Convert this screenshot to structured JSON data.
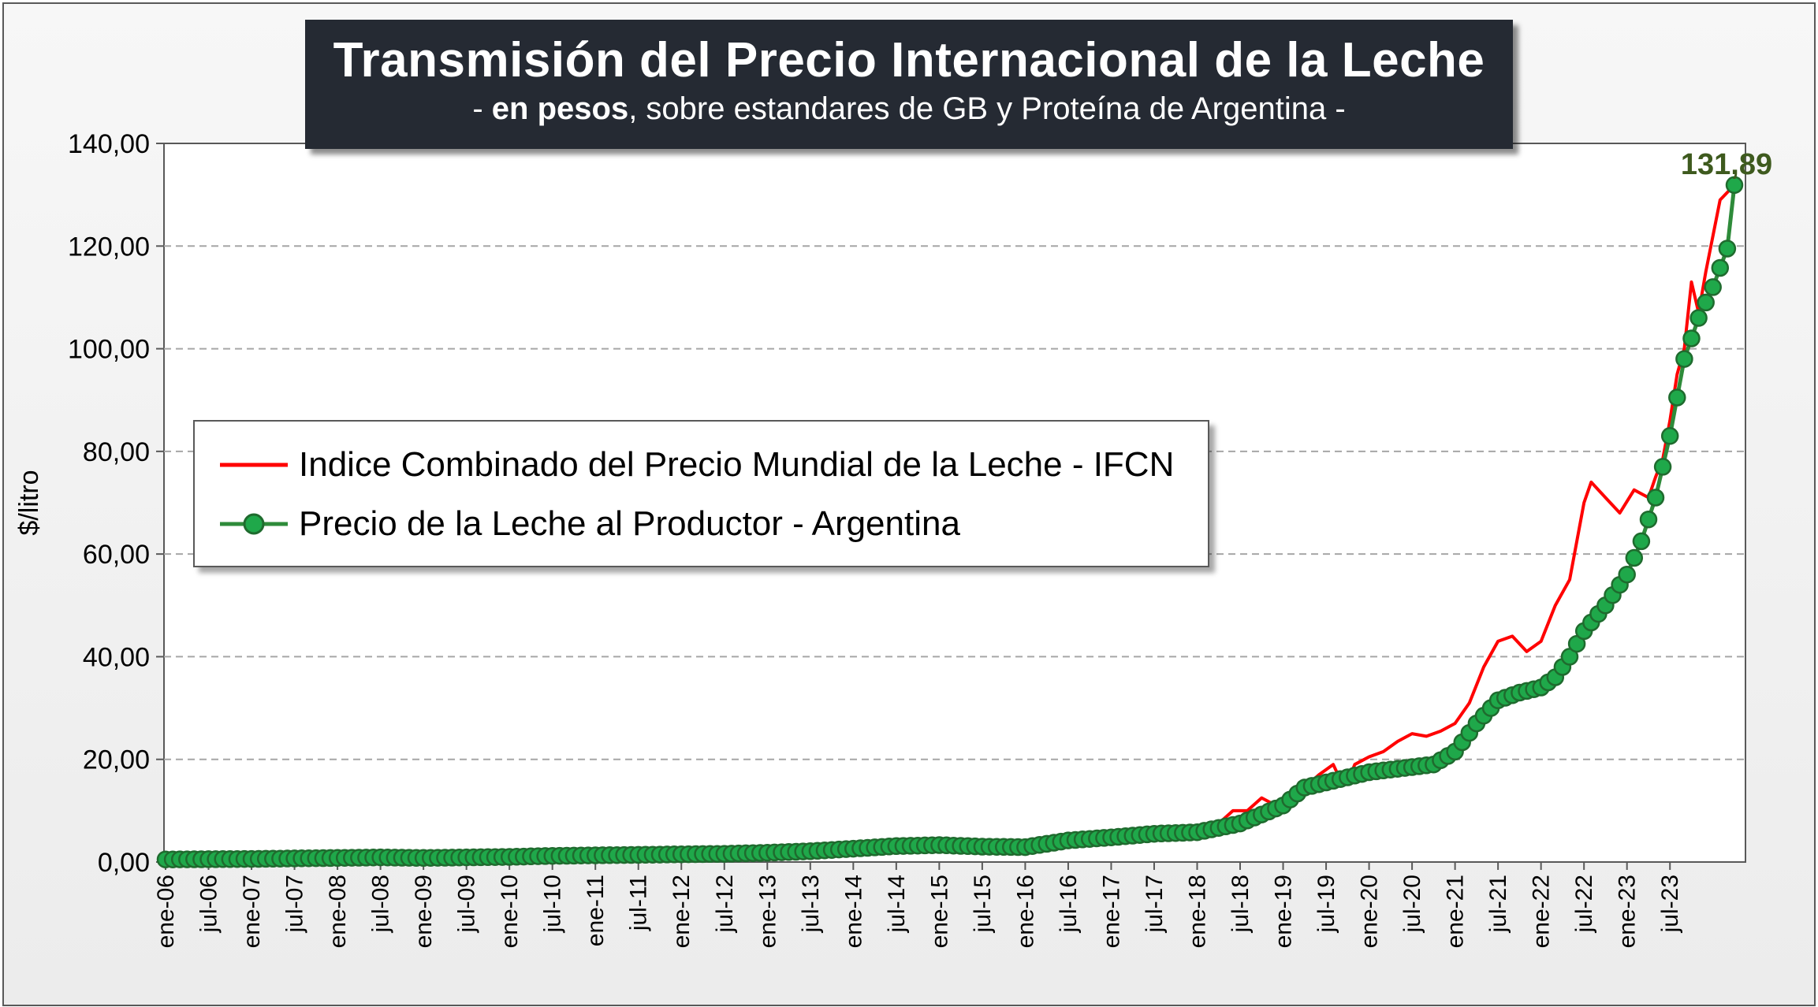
{
  "title": "Transmisión del Precio Internacional de la Leche",
  "subtitle": {
    "prefix": "- ",
    "bold": "en pesos",
    "rest": ", sobre estandares de GB y Proteína de  Argentina -"
  },
  "colors": {
    "ifcn": "#ff0000",
    "productor_line": "#2e8b3a",
    "productor_marker": "#1fa84a",
    "marker_edge": "#1f6b2e",
    "end_label": "#3e5a1e",
    "grid": "#a6a6a6"
  },
  "chart_data": {
    "type": "line",
    "ylabel": "$/litro",
    "ylim": [
      0,
      140
    ],
    "ytick_labels": [
      "0,00",
      "20,00",
      "40,00",
      "60,00",
      "80,00",
      "100,00",
      "120,00",
      "140,00"
    ],
    "x_start": "2006-01",
    "x_end": "2023-10",
    "x_tick_labels": [
      "ene-06",
      "jul-06",
      "ene-07",
      "jul-07",
      "ene-08",
      "jul-08",
      "ene-09",
      "jul-09",
      "ene-10",
      "jul-10",
      "ene-11",
      "jul-11",
      "ene-12",
      "jul-12",
      "ene-13",
      "jul-13",
      "ene-14",
      "jul-14",
      "ene-15",
      "jul-15",
      "ene-16",
      "jul-16",
      "ene-17",
      "jul-17",
      "ene-18",
      "jul-18",
      "ene-19",
      "jul-19",
      "ene-20",
      "jul-20",
      "ene-21",
      "jul-21",
      "ene-22",
      "jul-22",
      "ene-23",
      "jul-23"
    ],
    "grid": "horizontal dashed",
    "legend_position": "center-left",
    "end_label": "131,89",
    "series": [
      {
        "name": "Indice Combinado del Precio Mundial de la Leche - IFCN",
        "key": "ifcn",
        "points": [
          [
            "2006-01",
            0.5
          ],
          [
            "2007-01",
            0.6
          ],
          [
            "2007-07",
            0.9
          ],
          [
            "2008-01",
            0.9
          ],
          [
            "2008-07",
            1.0
          ],
          [
            "2009-01",
            0.8
          ],
          [
            "2009-07",
            0.8
          ],
          [
            "2010-01",
            1.0
          ],
          [
            "2010-07",
            1.3
          ],
          [
            "2011-01",
            1.4
          ],
          [
            "2011-07",
            1.5
          ],
          [
            "2012-01",
            1.5
          ],
          [
            "2012-07",
            1.6
          ],
          [
            "2013-01",
            1.8
          ],
          [
            "2013-07",
            2.2
          ],
          [
            "2014-01",
            3.0
          ],
          [
            "2014-02",
            4.0
          ],
          [
            "2014-07",
            3.6
          ],
          [
            "2015-01",
            3.6
          ],
          [
            "2015-07",
            3.4
          ],
          [
            "2016-01",
            3.2
          ],
          [
            "2016-04",
            4.0
          ],
          [
            "2016-07",
            4.8
          ],
          [
            "2017-01",
            5.2
          ],
          [
            "2017-07",
            6.0
          ],
          [
            "2018-01",
            6.5
          ],
          [
            "2018-04",
            7.5
          ],
          [
            "2018-06",
            10.0
          ],
          [
            "2018-08",
            10.0
          ],
          [
            "2018-10",
            12.5
          ],
          [
            "2018-12",
            11.0
          ],
          [
            "2019-02",
            12.0
          ],
          [
            "2019-04",
            14.5
          ],
          [
            "2019-06",
            17.0
          ],
          [
            "2019-08",
            19.0
          ],
          [
            "2019-09",
            16.0
          ],
          [
            "2019-10",
            15.5
          ],
          [
            "2019-11",
            19.0
          ],
          [
            "2020-01",
            20.5
          ],
          [
            "2020-03",
            21.5
          ],
          [
            "2020-05",
            23.5
          ],
          [
            "2020-07",
            25.0
          ],
          [
            "2020-09",
            24.5
          ],
          [
            "2020-11",
            25.5
          ],
          [
            "2021-01",
            27.0
          ],
          [
            "2021-03",
            31.0
          ],
          [
            "2021-05",
            38.0
          ],
          [
            "2021-07",
            43.0
          ],
          [
            "2021-09",
            44.0
          ],
          [
            "2021-11",
            41.0
          ],
          [
            "2022-01",
            43.0
          ],
          [
            "2022-03",
            50.0
          ],
          [
            "2022-05",
            55.0
          ],
          [
            "2022-07",
            70.0
          ],
          [
            "2022-08",
            74.0
          ],
          [
            "2022-10",
            71.0
          ],
          [
            "2022-12",
            68.0
          ],
          [
            "2023-02",
            72.5
          ],
          [
            "2023-04",
            71.0
          ],
          [
            "2023-05",
            75.0
          ],
          [
            "2023-06",
            78.5
          ],
          [
            "2023-07",
            86.0
          ],
          [
            "2023-08",
            95.0
          ],
          [
            "2023-09",
            100.0
          ],
          [
            "2023-10",
            113.0
          ],
          [
            "2023-11",
            107.0
          ],
          [
            "2023-12",
            115.0
          ],
          [
            "2024-02",
            129.0
          ],
          [
            "2024-04",
            131.9
          ]
        ]
      },
      {
        "name": "Precio de la Leche al Productor - Argentina",
        "key": "productor",
        "points": [
          [
            "2006-01",
            0.5
          ],
          [
            "2007-01",
            0.6
          ],
          [
            "2008-01",
            0.8
          ],
          [
            "2008-07",
            0.9
          ],
          [
            "2009-01",
            0.8
          ],
          [
            "2010-01",
            1.0
          ],
          [
            "2010-07",
            1.2
          ],
          [
            "2011-01",
            1.3
          ],
          [
            "2011-07",
            1.4
          ],
          [
            "2012-01",
            1.5
          ],
          [
            "2012-07",
            1.6
          ],
          [
            "2013-01",
            1.8
          ],
          [
            "2013-07",
            2.1
          ],
          [
            "2014-01",
            2.6
          ],
          [
            "2014-07",
            3.1
          ],
          [
            "2015-01",
            3.3
          ],
          [
            "2015-07",
            3.0
          ],
          [
            "2016-01",
            2.9
          ],
          [
            "2016-07",
            4.2
          ],
          [
            "2017-01",
            4.8
          ],
          [
            "2017-07",
            5.5
          ],
          [
            "2018-01",
            5.8
          ],
          [
            "2018-07",
            7.5
          ],
          [
            "2019-01",
            11.0
          ],
          [
            "2019-04",
            14.5
          ],
          [
            "2019-07",
            15.5
          ],
          [
            "2020-01",
            17.5
          ],
          [
            "2020-07",
            18.5
          ],
          [
            "2020-10",
            19.0
          ],
          [
            "2021-01",
            21.5
          ],
          [
            "2021-04",
            27.0
          ],
          [
            "2021-07",
            31.5
          ],
          [
            "2021-10",
            33.0
          ],
          [
            "2022-01",
            34.0
          ],
          [
            "2022-03",
            36.0
          ],
          [
            "2022-05",
            40.0
          ],
          [
            "2022-07",
            45.0
          ],
          [
            "2022-10",
            50.0
          ],
          [
            "2023-01",
            56.0
          ],
          [
            "2023-03",
            62.5
          ],
          [
            "2023-05",
            71.0
          ],
          [
            "2023-07",
            83.0
          ],
          [
            "2023-09",
            98.0
          ],
          [
            "2023-11",
            106.0
          ],
          [
            "2024-01",
            112.0
          ],
          [
            "2024-03",
            119.5
          ],
          [
            "2024-04",
            131.89
          ]
        ]
      }
    ]
  }
}
